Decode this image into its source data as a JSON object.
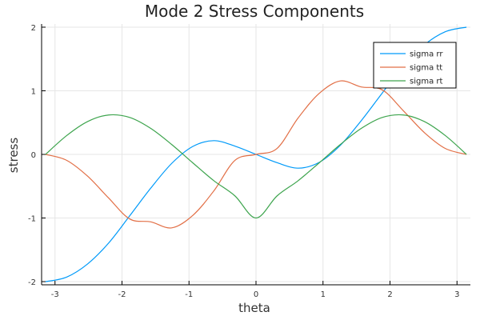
{
  "chart_data": {
    "type": "line",
    "title": "Mode 2 Stress Components",
    "xlabel": "theta",
    "ylabel": "stress",
    "xlim": [
      -3.2,
      3.2
    ],
    "ylim": [
      -2.05,
      2.05
    ],
    "xticks": [
      -3,
      -2,
      -1,
      0,
      1,
      2,
      3
    ],
    "yticks": [
      -2,
      -1,
      0,
      1,
      2
    ],
    "xtick_labels": [
      "-3",
      "-2",
      "-1",
      "0",
      "1",
      "2",
      "3"
    ],
    "ytick_labels": [
      "-2",
      "-1",
      "0",
      "1",
      "2"
    ],
    "grid": true,
    "legend_position": "top-right",
    "x": [
      -3.1416,
      -2.8274,
      -2.5133,
      -2.1991,
      -1.885,
      -1.5708,
      -1.2566,
      -0.9425,
      -0.6283,
      -0.3142,
      0.0,
      0.3142,
      0.6283,
      0.9425,
      1.2566,
      1.5708,
      1.885,
      2.1991,
      2.5133,
      2.8274,
      3.1416
    ],
    "series": [
      {
        "name": "sigma rr",
        "color": "#009af9",
        "values": [
          -2.0,
          -1.9292,
          -1.7219,
          -1.3928,
          -0.9659,
          -0.5303,
          -0.1399,
          0.1258,
          0.2163,
          0.1301,
          0.0,
          -0.1301,
          -0.2163,
          -0.1258,
          0.1399,
          0.5303,
          0.9659,
          1.3928,
          1.7219,
          1.9292,
          2.0
        ]
      },
      {
        "name": "sigma tt",
        "color": "#e26f46",
        "values": [
          0.0,
          -0.0924,
          -0.3425,
          -0.6867,
          -1.0148,
          -1.0607,
          -1.1547,
          -0.9578,
          -0.5721,
          -0.0936,
          0.0,
          0.0936,
          0.5721,
          0.9578,
          1.1547,
          1.0607,
          1.0148,
          0.6867,
          0.3425,
          0.0924,
          0.0
        ]
      },
      {
        "name": "sigma rt",
        "color": "#3da44d",
        "values": [
          0.0,
          0.2946,
          0.5164,
          0.6197,
          0.5804,
          0.4082,
          0.1538,
          -0.1336,
          -0.4142,
          -0.6524,
          -1.0,
          -0.6524,
          -0.4142,
          -0.1336,
          0.1538,
          0.4082,
          0.5804,
          0.6197,
          0.5164,
          0.2946,
          0.0
        ]
      }
    ]
  }
}
